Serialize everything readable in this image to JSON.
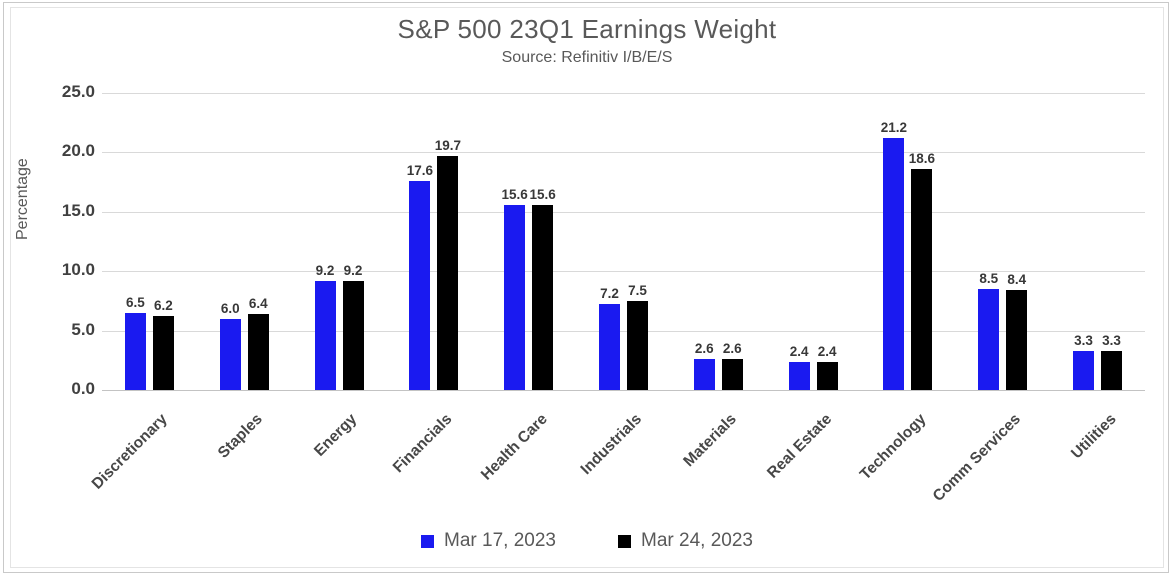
{
  "chart": {
    "title": "S&P 500 23Q1 Earnings Weight",
    "subtitle": "Source: Refinitiv I/B/E/S"
  },
  "chart_data": {
    "type": "bar",
    "title": "S&P 500 23Q1 Earnings Weight",
    "subtitle": "Source: Refinitiv I/B/E/S",
    "xlabel": "",
    "ylabel": "Percentage",
    "ylim": [
      0,
      25
    ],
    "yticks": [
      0.0,
      5.0,
      10.0,
      15.0,
      20.0,
      25.0
    ],
    "ytick_labels": [
      "0.0",
      "5.0",
      "10.0",
      "15.0",
      "20.0",
      "25.0"
    ],
    "grid": true,
    "legend_position": "bottom",
    "categories": [
      "Discretionary",
      "Staples",
      "Energy",
      "Financials",
      "Health Care",
      "Industrials",
      "Materials",
      "Real Estate",
      "Technology",
      "Comm Services",
      "Utilities"
    ],
    "series": [
      {
        "name": "Mar 17, 2023",
        "color": "#1a1af0",
        "values": [
          6.5,
          6.0,
          9.2,
          17.6,
          15.6,
          7.2,
          2.6,
          2.4,
          21.2,
          8.5,
          3.3
        ]
      },
      {
        "name": "Mar 24, 2023",
        "color": "#000000",
        "values": [
          6.2,
          6.4,
          9.2,
          19.7,
          15.6,
          7.5,
          2.6,
          2.4,
          18.6,
          8.4,
          3.3
        ]
      }
    ]
  },
  "colors": {
    "title_text": "#595959",
    "tick_text": "#404040",
    "gridline": "#d9d9d9",
    "series1": "#1a1af0",
    "series2": "#000000"
  }
}
